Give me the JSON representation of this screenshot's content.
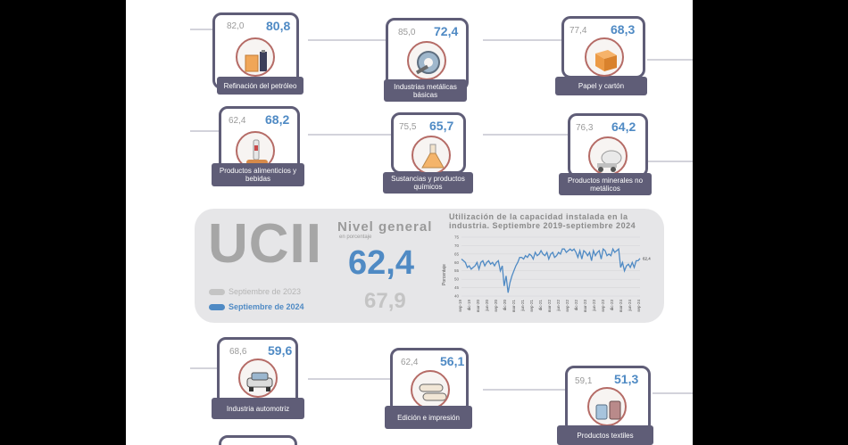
{
  "sectors_top": [
    {
      "label": "Refinación del petróleo",
      "old": "82,0",
      "new": "80,8",
      "icon": "oil-barrels-icon"
    },
    {
      "label": "Industrias metálicas básicas",
      "old": "85,0",
      "new": "72,4",
      "icon": "metal-coil-icon"
    },
    {
      "label": "Papel y cartón",
      "old": "77,4",
      "new": "68,3",
      "icon": "cardboard-box-icon"
    },
    {
      "label": "Productos alimenticios y bebidas",
      "old": "62,4",
      "new": "68,2",
      "icon": "food-drink-icon"
    },
    {
      "label": "Sustancias y productos químicos",
      "old": "75,5",
      "new": "65,7",
      "icon": "flask-icon"
    },
    {
      "label": "Productos minerales no metálicos",
      "old": "76,3",
      "new": "64,2",
      "icon": "cement-mixer-icon"
    }
  ],
  "sectors_bottom": [
    {
      "label": "Industria automotriz",
      "old": "68,6",
      "new": "59,6",
      "icon": "car-icon"
    },
    {
      "label": "Edición e impresión",
      "old": "62,4",
      "new": "56,1",
      "icon": "paper-rolls-icon"
    },
    {
      "label": "Productos textiles",
      "old": "59,1",
      "new": "51,3",
      "icon": "yarn-icon"
    }
  ],
  "summary": {
    "acronym": "UCII",
    "nivel_general": "Nivel general",
    "unit": "en porcentaje",
    "current_value": "62,4",
    "previous_value": "67,9",
    "legend_2023": "Septiembre de 2023",
    "legend_2024": "Septiembre de 2024"
  },
  "colors": {
    "accent_blue": "#4f8ac4",
    "frame": "#5f5d77",
    "gray": "#bdbdbd",
    "circle_border": "#b56b66"
  },
  "chart_data": {
    "type": "line",
    "title": "Utilización de la capacidad instalada en la industria. Septiembre 2019-septiembre 2024",
    "ylabel": "Porcentaje",
    "ylim": [
      40,
      75
    ],
    "yticks": [
      "75",
      "70",
      "65",
      "60",
      "55",
      "50",
      "45",
      "40"
    ],
    "end_label": "62,4",
    "x_labels": [
      "sep-19",
      "dic-19",
      "mar-20",
      "jun-20",
      "sep-20",
      "dic-20",
      "mar-21",
      "jun-21",
      "sep-21",
      "dic-21",
      "mar-22",
      "jun-22",
      "sep-22",
      "dic-22",
      "mar-23",
      "jun-23",
      "sep-23",
      "dic-23",
      "mar-24",
      "jun-24",
      "sep-24"
    ],
    "series": [
      {
        "values": [
          62,
          61,
          60,
          57,
          58,
          56,
          57,
          58,
          60,
          56,
          60,
          61,
          58,
          60,
          61,
          59,
          60,
          58,
          60,
          61,
          55,
          58,
          46,
          52,
          42,
          48,
          52,
          55,
          58,
          60,
          63,
          63,
          62,
          64,
          63,
          65,
          64,
          62,
          66,
          64,
          65,
          67,
          65,
          64,
          66,
          62,
          65,
          66,
          63,
          64,
          66,
          65,
          68,
          68,
          66,
          67,
          68,
          67,
          68,
          66,
          63,
          67,
          62,
          67,
          66,
          64,
          66,
          61,
          67,
          64,
          66,
          67,
          62,
          68,
          67,
          64,
          65,
          64,
          68,
          66,
          67,
          68,
          57,
          60,
          55,
          58,
          59,
          57,
          60,
          57,
          61,
          61,
          62.4
        ]
      }
    ]
  }
}
